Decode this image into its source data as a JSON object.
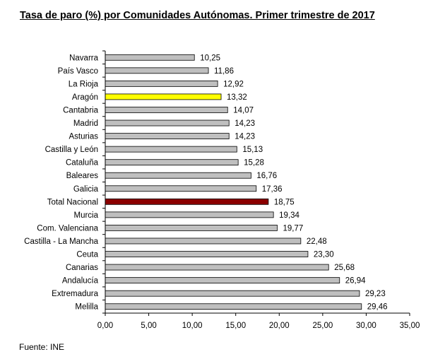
{
  "chart_data": {
    "type": "bar",
    "orientation": "horizontal",
    "title": "Tasa de paro (%) por Comunidades Autónomas. Primer trimestre de 2017",
    "xlabel": "",
    "ylabel": "",
    "xlim": [
      0,
      35
    ],
    "x_ticks": [
      "0,00",
      "5,00",
      "10,00",
      "15,00",
      "20,00",
      "25,00",
      "30,00",
      "35,00"
    ],
    "grid": false,
    "legend": "none",
    "categories": [
      "Navarra",
      "País Vasco",
      "La Rioja",
      "Aragón",
      "Cantabria",
      "Madrid",
      "Asturias",
      "Castilla y León",
      "Cataluña",
      "Baleares",
      "Galicia",
      "Total Nacional",
      "Murcia",
      "Com. Valenciana",
      "Castilla - La Mancha",
      "Ceuta",
      "Canarias",
      "Andalucía",
      "Extremadura",
      "Melilla"
    ],
    "values": [
      10.25,
      11.86,
      12.92,
      13.32,
      14.07,
      14.23,
      14.23,
      15.13,
      15.28,
      16.76,
      17.36,
      18.75,
      19.34,
      19.77,
      22.48,
      23.3,
      25.68,
      26.94,
      29.23,
      29.46
    ],
    "value_labels": [
      "10,25",
      "11,86",
      "12,92",
      "13,32",
      "14,07",
      "14,23",
      "14,23",
      "15,13",
      "15,28",
      "16,76",
      "17,36",
      "18,75",
      "19,34",
      "19,77",
      "22,48",
      "23,30",
      "25,68",
      "26,94",
      "29,23",
      "29,46"
    ],
    "colors": {
      "default": "#bfbfbf",
      "highlight": {
        "Aragón": "#ffff00",
        "Total Nacional": "#8b0000"
      },
      "border": "#000000"
    }
  },
  "footer": {
    "source": "Fuente: INE"
  }
}
